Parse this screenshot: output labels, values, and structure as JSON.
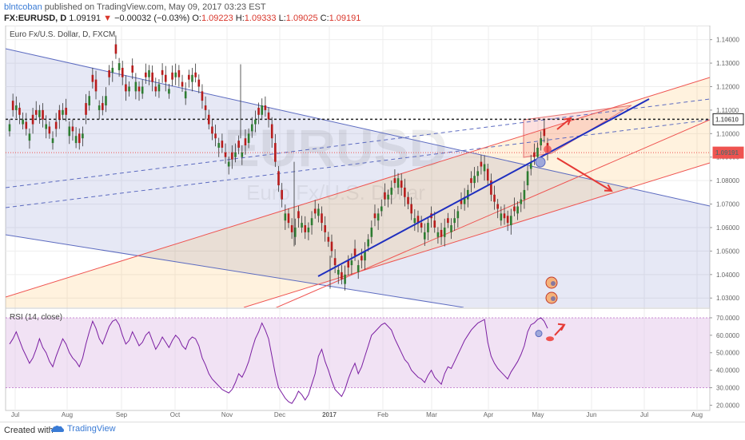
{
  "header": {
    "author": "blntcoban",
    "published_text": "published on TradingView.com, May 09, 2017 03:23 EST",
    "symbol": "FX:EURUSD, D",
    "price": "1.09191",
    "change": "−0.00032 (−0.03%)",
    "open_label": "O:",
    "open": "1.09223",
    "high_label": "H:",
    "high": "1.09333",
    "low_label": "L:",
    "low": "1.09025",
    "close_label": "C:",
    "close": "1.09191"
  },
  "footer": {
    "created_with": "Created with",
    "brand": "TradingView"
  },
  "watermark": {
    "main": "EURUSD",
    "sub": "Euro Fx/U.S. Dollar"
  },
  "colors": {
    "up": "#26a69a",
    "down": "#ef5350",
    "candle_up": "#2e7d32",
    "candle_down": "#b71c1c",
    "blue_channel": "#3f51b5",
    "red_channel": "#ef5350",
    "arrow": "#e53935",
    "rsi": "#9c27b0",
    "level_label_bg": "#ffffff",
    "current_label_bg": "#ef5350"
  },
  "chart_data": [
    {
      "type": "candlestick",
      "title": "Euro Fx/U.S. Dollar, D, FXCM",
      "ylim": [
        1.026,
        1.146
      ],
      "y_ticks": [
        "1.14000",
        "1.13000",
        "1.12000",
        "1.11000",
        "1.10000",
        "1.09000",
        "1.08000",
        "1.07000",
        "1.06000",
        "1.05000",
        "1.04000",
        "1.03000"
      ],
      "y_tick_values": [
        1.14,
        1.13,
        1.12,
        1.11,
        1.1,
        1.09,
        1.08,
        1.07,
        1.06,
        1.05,
        1.04,
        1.03
      ],
      "x_labels": [
        "Jul",
        "Aug",
        "Sep",
        "Oct",
        "Nov",
        "Dec",
        "2017",
        "Feb",
        "Mar",
        "Apr",
        "May",
        "Jun",
        "Jul",
        "Aug"
      ],
      "level_labels": [
        {
          "label": "1.10610",
          "value": 1.1061
        },
        {
          "label": "1.09191",
          "value": 1.09191
        }
      ],
      "resistance_level": 1.1061,
      "current_price": 1.09191,
      "candles_close": [
        1.104,
        1.11,
        1.112,
        1.108,
        1.106,
        1.102,
        1.1,
        1.104,
        1.108,
        1.11,
        1.106,
        1.104,
        1.1,
        1.098,
        1.102,
        1.106,
        1.11,
        1.108,
        1.103,
        1.101,
        1.099,
        1.096,
        1.1,
        1.108,
        1.116,
        1.122,
        1.118,
        1.112,
        1.11,
        1.116,
        1.124,
        1.128,
        1.134,
        1.13,
        1.124,
        1.118,
        1.12,
        1.126,
        1.122,
        1.118,
        1.12,
        1.124,
        1.127,
        1.122,
        1.118,
        1.121,
        1.125,
        1.122,
        1.119,
        1.123,
        1.126,
        1.124,
        1.12,
        1.118,
        1.123,
        1.125,
        1.124,
        1.12,
        1.114,
        1.11,
        1.104,
        1.1,
        1.098,
        1.096,
        1.094,
        1.09,
        1.088,
        1.089,
        1.092,
        1.094,
        1.092,
        1.095,
        1.1,
        1.104,
        1.106,
        1.108,
        1.112,
        1.11,
        1.106,
        1.098,
        1.088,
        1.078,
        1.072,
        1.066,
        1.062,
        1.058,
        1.06,
        1.064,
        1.062,
        1.058,
        1.06,
        1.064,
        1.066,
        1.068,
        1.062,
        1.058,
        1.054,
        1.05,
        1.044,
        1.042,
        1.038,
        1.04,
        1.043,
        1.046,
        1.048,
        1.044,
        1.046,
        1.05,
        1.055,
        1.06,
        1.064,
        1.066,
        1.069,
        1.072,
        1.074,
        1.077,
        1.079,
        1.081,
        1.077,
        1.073,
        1.07,
        1.066,
        1.064,
        1.062,
        1.06,
        1.058,
        1.062,
        1.064,
        1.06,
        1.058,
        1.056,
        1.06,
        1.062,
        1.061,
        1.064,
        1.067,
        1.07,
        1.073,
        1.076,
        1.079,
        1.082,
        1.084,
        1.086,
        1.087,
        1.08,
        1.074,
        1.071,
        1.068,
        1.066,
        1.064,
        1.062,
        1.065,
        1.067,
        1.069,
        1.072,
        1.076,
        1.084,
        1.088,
        1.09,
        1.094,
        1.098,
        1.099,
        1.092
      ],
      "candles_open_offset": [
        -0.003,
        0.004,
        -0.002,
        0.003,
        -0.002,
        0.003,
        -0.003,
        0.004,
        0.002,
        -0.003,
        0.004,
        -0.002,
        0.003,
        -0.002,
        0.003,
        0.004,
        -0.002,
        0.003,
        -0.004,
        0.002,
        -0.003,
        0.004,
        -0.002,
        0.005,
        -0.004,
        0.003,
        0.005,
        -0.002,
        0.003,
        -0.004,
        0.003,
        -0.002,
        0.004,
        -0.003,
        0.004,
        0.003,
        -0.002,
        0.003,
        -0.004,
        0.002,
        -0.003,
        0.002,
        -0.003,
        0.004,
        0.002,
        -0.003,
        0.002,
        0.003,
        -0.002,
        0.003,
        -0.002,
        0.003,
        0.002,
        -0.003,
        0.002,
        -0.003,
        0.002,
        0.003,
        0.004,
        0.002,
        0.004,
        0.003,
        0.002,
        -0.002,
        0.003,
        0.002,
        -0.002,
        0.003,
        -0.002,
        0.003,
        -0.002,
        0.003,
        -0.004,
        -0.003,
        -0.002,
        0.003,
        -0.004,
        0.002,
        0.003,
        0.006,
        0.008,
        0.006,
        0.004,
        -0.003,
        0.004,
        0.003,
        -0.004,
        0.003,
        -0.002,
        0.003,
        -0.002,
        -0.003,
        0.002,
        -0.003,
        0.004,
        0.003,
        0.002,
        0.004,
        0.003,
        -0.002,
        0.003,
        -0.004,
        0.003,
        -0.002,
        0.003,
        -0.003,
        0.002,
        -0.004,
        -0.003,
        -0.004,
        0.002,
        -0.003,
        -0.002,
        0.003,
        -0.002,
        -0.003,
        0.002,
        -0.004,
        0.003,
        0.004,
        0.003,
        0.004,
        -0.002,
        0.003,
        0.002,
        -0.003,
        -0.004,
        0.002,
        0.003,
        -0.002,
        0.003,
        -0.004,
        0.002,
        -0.003,
        -0.002,
        -0.003,
        0.002,
        -0.003,
        -0.004,
        0.002,
        -0.003,
        -0.002,
        0.002,
        -0.003,
        0.005,
        0.006,
        0.003,
        0.002,
        -0.003,
        0.002,
        0.003,
        -0.004,
        0.002,
        -0.003,
        -0.002,
        -0.004,
        -0.006,
        -0.003,
        0.002,
        -0.004,
        -0.003,
        0.003,
        0.004
      ]
    },
    {
      "type": "line",
      "title": "RSI (14, close)",
      "ylim": [
        17,
        75
      ],
      "y_ticks": [
        "70.0000",
        "60.0000",
        "50.0000",
        "40.0000",
        "30.0000",
        "20.0000"
      ],
      "y_tick_values": [
        70,
        60,
        50,
        40,
        30,
        20
      ],
      "band": [
        30,
        70
      ],
      "values": [
        55,
        58,
        62,
        57,
        52,
        48,
        44,
        47,
        52,
        58,
        53,
        50,
        45,
        42,
        48,
        53,
        58,
        55,
        50,
        47,
        45,
        42,
        47,
        55,
        62,
        68,
        64,
        58,
        55,
        60,
        65,
        68,
        69,
        66,
        60,
        55,
        57,
        62,
        58,
        54,
        56,
        60,
        62,
        57,
        52,
        55,
        59,
        56,
        53,
        57,
        60,
        58,
        54,
        52,
        57,
        59,
        58,
        54,
        47,
        43,
        38,
        35,
        33,
        31,
        29,
        28,
        27,
        29,
        33,
        38,
        36,
        40,
        45,
        52,
        58,
        62,
        67,
        63,
        58,
        48,
        38,
        30,
        27,
        24,
        22,
        21,
        24,
        28,
        26,
        23,
        26,
        32,
        38,
        48,
        52,
        45,
        40,
        34,
        29,
        27,
        25,
        29,
        35,
        40,
        44,
        38,
        42,
        48,
        54,
        60,
        62,
        64,
        66,
        67,
        65,
        63,
        58,
        54,
        50,
        46,
        44,
        40,
        38,
        36,
        35,
        33,
        37,
        40,
        36,
        34,
        32,
        38,
        42,
        41,
        45,
        49,
        53,
        57,
        60,
        63,
        65,
        67,
        68,
        69,
        56,
        48,
        44,
        41,
        39,
        37,
        35,
        39,
        42,
        45,
        49,
        54,
        62,
        66,
        67,
        69,
        70,
        68,
        64
      ]
    }
  ]
}
